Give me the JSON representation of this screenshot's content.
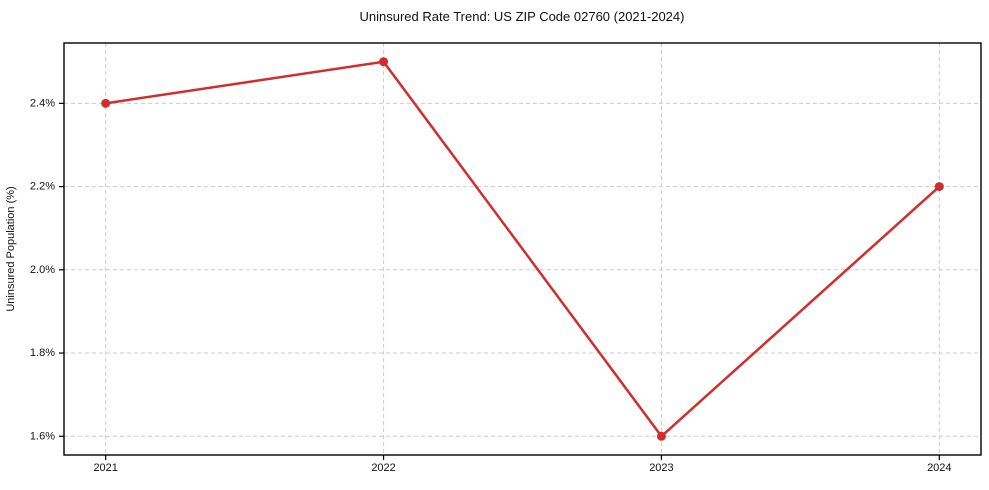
{
  "chart_data": {
    "type": "line",
    "title": "Uninsured Rate Trend: US ZIP Code 02760 (2021-2024)",
    "xlabel": "",
    "ylabel": "Uninsured Population (%)",
    "x": [
      2021,
      2022,
      2023,
      2024
    ],
    "x_tick_labels": [
      "2021",
      "2022",
      "2023",
      "2024"
    ],
    "values": [
      2.4,
      2.5,
      1.6,
      2.2
    ],
    "y_ticks": [
      1.6,
      1.8,
      2.0,
      2.2,
      2.4
    ],
    "y_tick_labels": [
      "1.6%",
      "1.8%",
      "2.0%",
      "2.2%",
      "2.4%"
    ],
    "xlim": [
      2020.85,
      2024.15
    ],
    "ylim": [
      1.555,
      2.545
    ],
    "grid": true,
    "grid_style": "dashed",
    "grid_color": "#cccccc",
    "legend": "none",
    "line_color": "#d22c2c",
    "marker": "circle",
    "marker_radius": 4.5,
    "line_width": 2.5,
    "background": "#ffffff",
    "axis_color": "#000000"
  }
}
